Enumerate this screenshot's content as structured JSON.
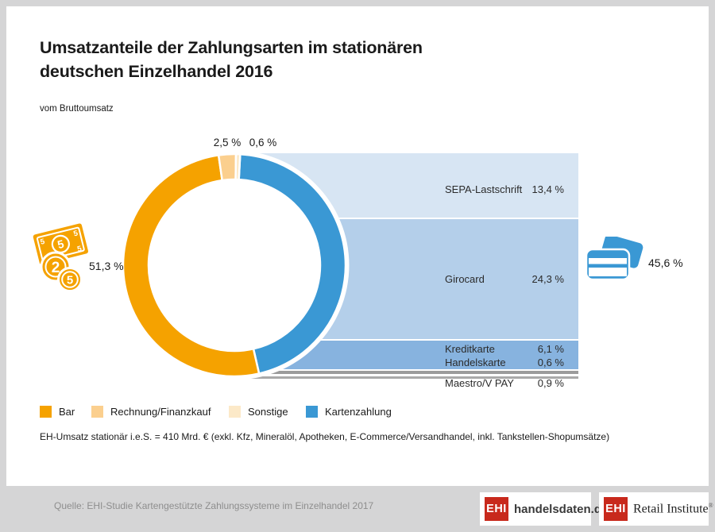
{
  "header": {
    "title": "Umsatzanteile der Zahlungsarten im stationären\ndeutschen Einzelhandel 2016",
    "subtitle": "vom Bruttoumsatz"
  },
  "chart_data": {
    "type": "pie",
    "title": "Umsatzanteile der Zahlungsarten im stationären deutschen Einzelhandel 2016",
    "subtitle": "vom Bruttoumsatz",
    "unit": "% vom Bruttoumsatz",
    "start_angle_deg": 3,
    "series": [
      {
        "name": "Kartenzahlung",
        "value": 45.6,
        "label": "45,6 %",
        "color": "#3a98d4"
      },
      {
        "name": "Bar",
        "value": 51.3,
        "label": "51,3 %",
        "color": "#f5a200"
      },
      {
        "name": "Rechnung/Finanzkauf",
        "value": 2.5,
        "label": "2,5 %",
        "color": "#fbcf8e"
      },
      {
        "name": "Sonstige",
        "value": 0.6,
        "label": "0,6 %",
        "color": "#fce9c8"
      }
    ],
    "breakdown": [
      {
        "label": "SEPA-Lastschrift",
        "value": "13,4 %",
        "band_color": "#d7e5f3"
      },
      {
        "label": "Girocard",
        "value": "24,3 %",
        "band_color": "#b4cfea"
      },
      {
        "label": "Kreditkarte",
        "value": "6,1 %",
        "band_color": "#87b3df"
      },
      {
        "label": "Handelskarte",
        "value": "0,6 %",
        "band_color": "#87b3df"
      },
      {
        "label": "Maestro/V PAY",
        "value": "0,9 %",
        "band_color": "#9b9b9b"
      }
    ],
    "legend_position": "bottom"
  },
  "legend": {
    "items": [
      {
        "label": "Bar",
        "color": "#f5a200"
      },
      {
        "label": "Rechnung/Finanzkauf",
        "color": "#fbcf8e"
      },
      {
        "label": "Sonstige",
        "color": "#fce9c8"
      },
      {
        "label": "Kartenzahlung",
        "color": "#3a98d4"
      }
    ]
  },
  "footnote": "EH-Umsatz stationär i.e.S. = 410 Mrd. €  (exkl. Kfz, Mineralöl, Apotheken, E-Commerce/Versandhandel, inkl. Tankstellen-Shopumsätze)",
  "footer": {
    "source": "Quelle: EHI-Studie Kartengestützte Zahlungssysteme im Einzelhandel 2017",
    "logo1": {
      "ehi": "EHI",
      "text": "handelsdaten.de"
    },
    "logo2": {
      "ehi": "EHI",
      "text": "Retail Institute",
      "reg": "®"
    }
  }
}
